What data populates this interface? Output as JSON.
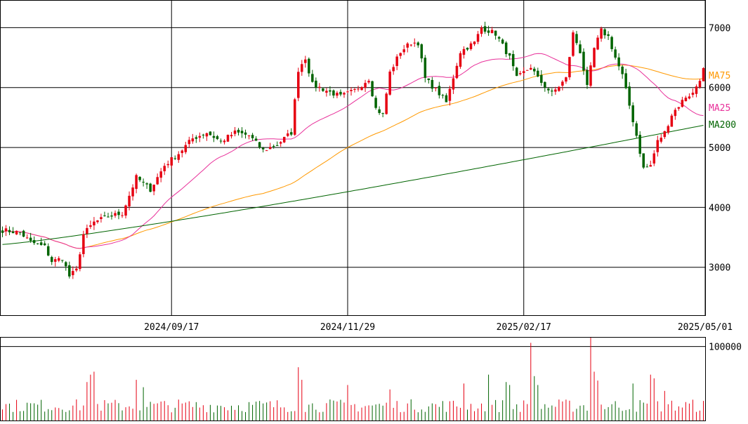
{
  "chart_data": [
    {
      "type": "candlestick",
      "title": "",
      "y_tick_labels": [
        "7000",
        "6000",
        "5000",
        "4000",
        "3000"
      ],
      "y_ticks": [
        7000,
        6000,
        5000,
        4000,
        3000
      ],
      "ylim": [
        2200,
        7450
      ],
      "x_tick_labels": [
        "2024/09/17",
        "2024/11/29",
        "2025/02/17",
        "2025/05/01"
      ],
      "x_tick_index": [
        48,
        98,
        148,
        198
      ],
      "bar_count": 200,
      "grid": true,
      "up_color": "#e60012",
      "down_color": "#006400",
      "anchors": [
        [
          0,
          3620
        ],
        [
          5,
          3580
        ],
        [
          8,
          3420
        ],
        [
          12,
          3340
        ],
        [
          14,
          3100
        ],
        [
          17,
          3150
        ],
        [
          19,
          2850
        ],
        [
          21,
          2950
        ],
        [
          23,
          3550
        ],
        [
          26,
          3750
        ],
        [
          30,
          3850
        ],
        [
          34,
          3900
        ],
        [
          38,
          4500
        ],
        [
          42,
          4300
        ],
        [
          46,
          4700
        ],
        [
          50,
          4900
        ],
        [
          54,
          5150
        ],
        [
          58,
          5250
        ],
        [
          62,
          5100
        ],
        [
          66,
          5250
        ],
        [
          70,
          5200
        ],
        [
          74,
          4950
        ],
        [
          78,
          5050
        ],
        [
          82,
          5250
        ],
        [
          84,
          6300
        ],
        [
          86,
          6500
        ],
        [
          88,
          6050
        ],
        [
          92,
          5950
        ],
        [
          96,
          5850
        ],
        [
          100,
          5950
        ],
        [
          104,
          6150
        ],
        [
          106,
          5650
        ],
        [
          108,
          5550
        ],
        [
          110,
          6250
        ],
        [
          113,
          6600
        ],
        [
          116,
          6750
        ],
        [
          118,
          6750
        ],
        [
          120,
          6150
        ],
        [
          124,
          5900
        ],
        [
          126,
          5750
        ],
        [
          130,
          6600
        ],
        [
          134,
          6750
        ],
        [
          136,
          7000
        ],
        [
          140,
          6900
        ],
        [
          144,
          6500
        ],
        [
          146,
          6150
        ],
        [
          150,
          6350
        ],
        [
          152,
          6150
        ],
        [
          156,
          5900
        ],
        [
          160,
          6150
        ],
        [
          162,
          6900
        ],
        [
          164,
          6600
        ],
        [
          166,
          6000
        ],
        [
          168,
          6650
        ],
        [
          170,
          6950
        ],
        [
          172,
          6850
        ],
        [
          174,
          6500
        ],
        [
          176,
          6200
        ],
        [
          178,
          5700
        ],
        [
          180,
          5200
        ],
        [
          182,
          4650
        ],
        [
          184,
          4700
        ],
        [
          186,
          5100
        ],
        [
          188,
          5250
        ],
        [
          190,
          5550
        ],
        [
          192,
          5700
        ],
        [
          194,
          5850
        ],
        [
          196,
          5900
        ],
        [
          198,
          6150
        ],
        [
          199,
          6300
        ]
      ],
      "series": [
        {
          "name": "MA75",
          "label": "MA75",
          "color": "#ff9900",
          "period": 75
        },
        {
          "name": "MA25",
          "label": "MA25",
          "color": "#e8309a",
          "period": 25
        },
        {
          "name": "MA200",
          "label": "MA200",
          "color": "#006400",
          "period": 200,
          "values_start": 3380,
          "values_end": 5370
        }
      ]
    },
    {
      "type": "bar",
      "title": "",
      "y_tick_labels": [
        "100000"
      ],
      "y_ticks": [
        100000
      ],
      "ylim": [
        0,
        112000
      ],
      "grid": true,
      "base_volume": 20000,
      "spikes": [
        [
          24,
          52000
        ],
        [
          25,
          62000
        ],
        [
          26,
          66000
        ],
        [
          38,
          55000
        ],
        [
          40,
          45000
        ],
        [
          84,
          72000
        ],
        [
          85,
          55000
        ],
        [
          98,
          48000
        ],
        [
          110,
          42000
        ],
        [
          131,
          50000
        ],
        [
          138,
          62000
        ],
        [
          143,
          52000
        ],
        [
          144,
          48000
        ],
        [
          150,
          105000
        ],
        [
          151,
          60000
        ],
        [
          152,
          48000
        ],
        [
          167,
          113000
        ],
        [
          168,
          66000
        ],
        [
          169,
          54000
        ],
        [
          179,
          50000
        ],
        [
          184,
          62000
        ],
        [
          185,
          57000
        ],
        [
          188,
          40000
        ]
      ]
    }
  ]
}
